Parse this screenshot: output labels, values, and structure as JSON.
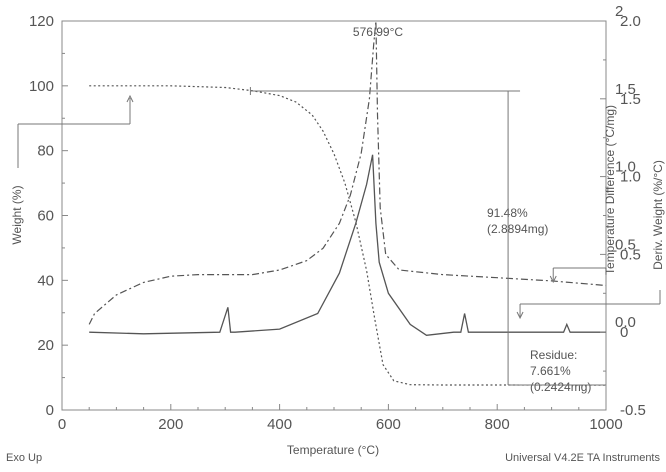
{
  "chart_data": {
    "type": "line",
    "xlabel": "Temperature (°C)",
    "x_ticks": [
      0,
      200,
      400,
      600,
      800,
      1000
    ],
    "xlim": [
      0,
      1000
    ],
    "y_left": {
      "label": "Weight (%)",
      "ticks": [
        0,
        20,
        40,
        60,
        80,
        100,
        120
      ],
      "lim": [
        0,
        120
      ]
    },
    "y_right1": {
      "label": "Temperature Difference (°C/mg)",
      "ticks": [
        "-0.5",
        "0",
        "0.5",
        "1.0",
        "1.5",
        "2.0"
      ],
      "values": [
        -0.5,
        0,
        0.5,
        1.0,
        1.5,
        2.0
      ],
      "lim": [
        -0.5,
        2.0
      ]
    },
    "y_right2": {
      "label": "Deriv. Weight (%/°C)",
      "ticks": [
        "0.0",
        "0.5",
        "1.0",
        "1.5",
        "2"
      ],
      "values": [
        0.0,
        0.5,
        1.0,
        1.5,
        2.0
      ],
      "lim": [
        -0.5,
        2.0
      ]
    },
    "series": [
      {
        "style": "dotted",
        "axis": "weight",
        "x": [
          50,
          200,
          300,
          350,
          400,
          430,
          460,
          480,
          500,
          520,
          540,
          560,
          575,
          590,
          610,
          640,
          700,
          800,
          1000
        ],
        "y": [
          100,
          100,
          99.5,
          98.5,
          97,
          95,
          91,
          86,
          79,
          70,
          58,
          43,
          28,
          14,
          9,
          7.8,
          7.7,
          7.7,
          7.66
        ]
      },
      {
        "style": "solid",
        "axis": "temp_diff",
        "x": [
          50,
          150,
          290,
          305,
          310,
          318,
          400,
          470,
          510,
          540,
          560,
          571,
          577,
          583,
          600,
          640,
          670,
          720,
          733,
          740,
          747,
          800,
          900,
          922,
          928,
          934,
          1000
        ],
        "y": [
          0.0,
          -0.01,
          0.0,
          0.16,
          0.0,
          0.0,
          0.02,
          0.12,
          0.38,
          0.7,
          0.95,
          1.14,
          0.7,
          0.45,
          0.25,
          0.05,
          -0.02,
          0.0,
          0.0,
          0.12,
          0.0,
          0.0,
          0.0,
          0.0,
          0.05,
          0.0,
          0.0
        ]
      },
      {
        "style": "dashdot",
        "axis": "deriv",
        "x": [
          50,
          60,
          100,
          150,
          200,
          250,
          300,
          350,
          400,
          450,
          480,
          510,
          530,
          550,
          565,
          573,
          577,
          580,
          585,
          595,
          620,
          700,
          800,
          900,
          1000
        ],
        "y": [
          0.05,
          0.12,
          0.24,
          0.32,
          0.36,
          0.37,
          0.37,
          0.37,
          0.4,
          0.46,
          0.54,
          0.7,
          0.88,
          1.15,
          1.5,
          1.85,
          2.0,
          1.4,
          0.8,
          0.5,
          0.4,
          0.37,
          0.35,
          0.33,
          0.3
        ]
      }
    ],
    "annotations": {
      "peak_label": "576.99°C",
      "loss_pct": "91.48%",
      "loss_mg": "(2.8894mg)",
      "residue_label": "Residue:",
      "residue_pct": "7.661%",
      "residue_mg": "(0.2424mg)"
    }
  },
  "footer": {
    "left": "Exo Up",
    "right": "Universal V4.2E TA Instruments"
  }
}
